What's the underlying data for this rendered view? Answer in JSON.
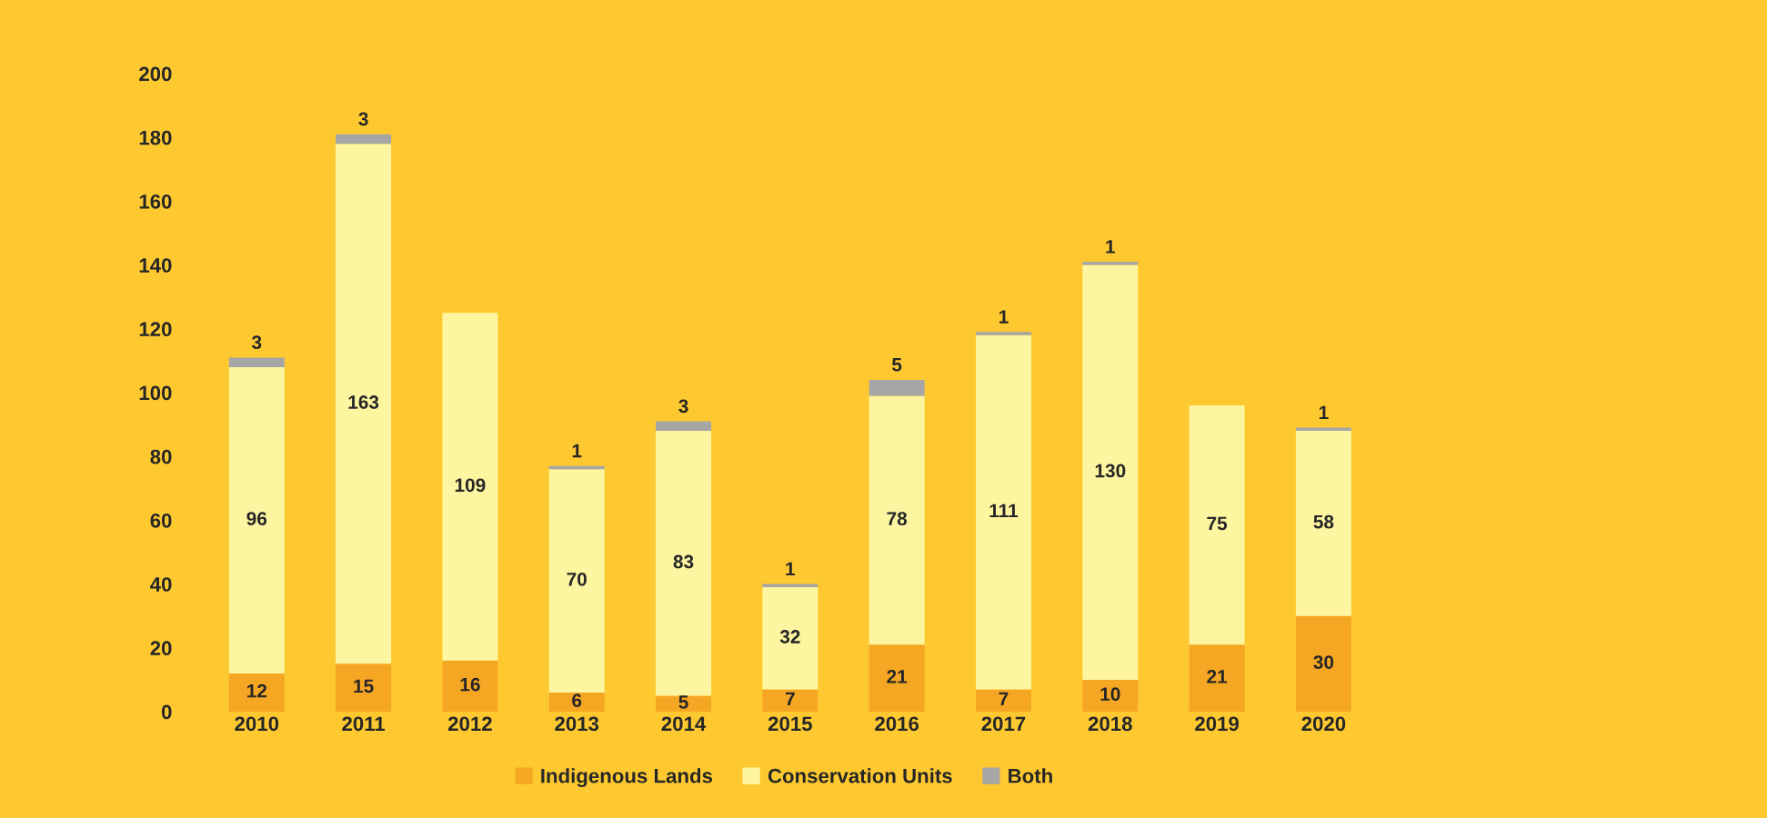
{
  "chart_data": {
    "type": "bar",
    "stacked": true,
    "data_labels": true,
    "legend": "bottom",
    "grid": false,
    "categories": [
      "2010",
      "2011",
      "2012",
      "2013",
      "2014",
      "2015",
      "2016",
      "2017",
      "2018",
      "2019",
      "2020"
    ],
    "ylim": [
      0,
      200
    ],
    "yticks": [
      0,
      20,
      40,
      60,
      80,
      100,
      120,
      140,
      160,
      180,
      200
    ],
    "series": [
      {
        "name": "Indigenous Lands",
        "color": "#f5a623",
        "values": [
          12,
          15,
          16,
          6,
          5,
          7,
          21,
          7,
          10,
          21,
          30
        ]
      },
      {
        "name": "Conservation Units",
        "color": "#fdf5a0",
        "values": [
          96,
          163,
          109,
          70,
          83,
          32,
          78,
          111,
          130,
          75,
          58
        ]
      },
      {
        "name": "Both",
        "color": "#a6a6a6",
        "values": [
          3,
          3,
          null,
          1,
          3,
          1,
          5,
          1,
          1,
          null,
          1
        ]
      }
    ]
  }
}
